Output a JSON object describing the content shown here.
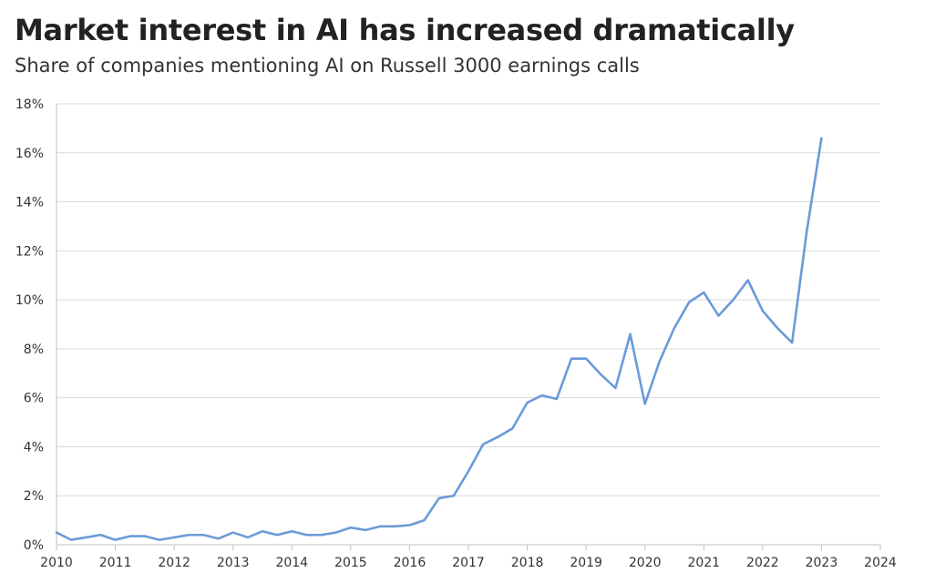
{
  "colors": {
    "line": "#6a9bd8",
    "grid": "#d9d9d9",
    "axis": "#bfbfbf",
    "text": "#333333"
  },
  "chart_data": {
    "type": "line",
    "title": "Market interest in AI has increased dramatically",
    "subtitle": "Share of companies mentioning AI on Russell 3000 earnings calls",
    "xlabel": "",
    "ylabel": "",
    "xlim": [
      2010,
      2024
    ],
    "ylim": [
      0,
      18
    ],
    "x_ticks": [
      2010,
      2011,
      2012,
      2013,
      2014,
      2015,
      2016,
      2017,
      2018,
      2019,
      2020,
      2021,
      2022,
      2023,
      2024
    ],
    "y_ticks": [
      0,
      2,
      4,
      6,
      8,
      10,
      12,
      14,
      16,
      18
    ],
    "y_tick_format": "percent",
    "grid": true,
    "legend": "none",
    "series": [
      {
        "x": [
          2010.0,
          2010.25,
          2010.5,
          2010.75,
          2011.0,
          2011.25,
          2011.5,
          2011.75,
          2012.0,
          2012.25,
          2012.5,
          2012.75,
          2013.0,
          2013.25,
          2013.5,
          2013.75,
          2014.0,
          2014.25,
          2014.5,
          2014.75,
          2015.0,
          2015.25,
          2015.5,
          2015.75,
          2016.0,
          2016.25,
          2016.5,
          2016.75,
          2017.0,
          2017.25,
          2017.5,
          2017.75,
          2018.0,
          2018.25,
          2018.5,
          2018.75,
          2019.0,
          2019.25,
          2019.5,
          2019.75,
          2020.0,
          2020.25,
          2020.5,
          2020.75,
          2021.0,
          2021.25,
          2021.5,
          2021.75,
          2022.0,
          2022.25,
          2022.5,
          2022.75,
          2023.0
        ],
        "values": [
          0.5,
          0.2,
          0.3,
          0.4,
          0.2,
          0.35,
          0.35,
          0.2,
          0.3,
          0.4,
          0.4,
          0.25,
          0.5,
          0.3,
          0.55,
          0.4,
          0.55,
          0.4,
          0.4,
          0.5,
          0.7,
          0.6,
          0.75,
          0.75,
          0.8,
          1.0,
          1.9,
          2.0,
          3.0,
          4.1,
          4.4,
          4.75,
          5.8,
          6.1,
          5.95,
          7.6,
          7.6,
          6.95,
          6.4,
          8.6,
          5.75,
          7.5,
          8.85,
          9.9,
          10.3,
          9.35,
          10.0,
          10.8,
          9.55,
          8.85,
          8.25,
          12.8,
          16.6
        ]
      }
    ]
  }
}
